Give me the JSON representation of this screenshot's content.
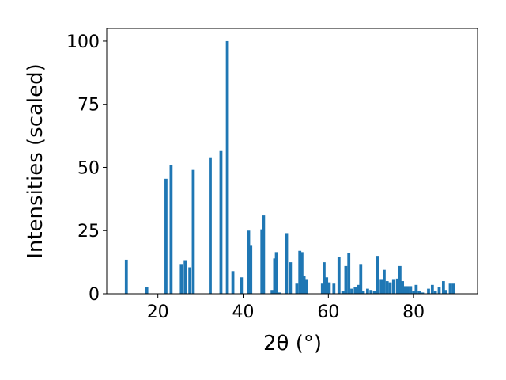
{
  "chart_data": {
    "type": "bar",
    "xlabel": "2θ (°)",
    "ylabel": "Intensities (scaled)",
    "xlim": [
      8,
      95
    ],
    "ylim": [
      0,
      105
    ],
    "xticks": [
      20,
      40,
      60,
      80
    ],
    "yticks": [
      0,
      25,
      50,
      75,
      100
    ],
    "bar_width": 0.7,
    "color": "#1f77b4",
    "grid": false,
    "x": [
      12.6,
      17.4,
      21.9,
      23.1,
      25.5,
      26.4,
      27.5,
      28.3,
      32.3,
      34.8,
      36.3,
      37.6,
      39.6,
      41.3,
      41.8,
      44.4,
      44.8,
      46.8,
      47.4,
      47.8,
      48.5,
      50.2,
      51.1,
      52.6,
      53.3,
      53.8,
      54.3,
      54.8,
      58.6,
      59.0,
      59.6,
      60.2,
      61.3,
      62.5,
      63.4,
      64.1,
      64.8,
      65.5,
      66.3,
      67.0,
      67.6,
      68.2,
      69.2,
      70.0,
      70.8,
      71.6,
      72.4,
      73.1,
      73.8,
      74.5,
      75.3,
      76.2,
      76.8,
      77.4,
      78.0,
      78.6,
      79.3,
      80.0,
      80.6,
      81.3,
      82.1,
      83.5,
      84.4,
      85.1,
      86.0,
      87.0,
      87.6,
      88.6,
      89.3
    ],
    "values": [
      13.5,
      2.5,
      45.5,
      51.0,
      11.5,
      13.0,
      10.5,
      49.0,
      54.0,
      56.5,
      100.0,
      9.0,
      6.5,
      25.0,
      19.0,
      25.5,
      31.0,
      1.5,
      14.0,
      16.5,
      0.5,
      24.0,
      12.5,
      4.0,
      17.0,
      16.5,
      7.0,
      5.5,
      4.0,
      12.5,
      6.5,
      4.5,
      4.0,
      14.5,
      1.0,
      11.0,
      16.0,
      2.0,
      2.5,
      3.5,
      11.5,
      1.0,
      2.0,
      1.5,
      1.0,
      15.0,
      5.5,
      9.5,
      5.0,
      4.5,
      5.5,
      6.0,
      11.0,
      5.0,
      3.0,
      3.0,
      3.0,
      1.0,
      3.5,
      1.0,
      0.5,
      2.0,
      3.5,
      1.0,
      2.5,
      5.0,
      1.5,
      4.0,
      4.0
    ]
  }
}
